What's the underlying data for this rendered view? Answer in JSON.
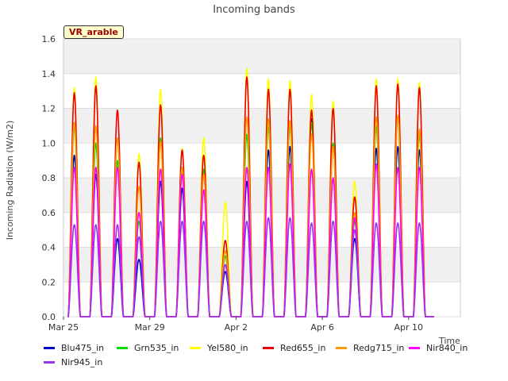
{
  "chart_data": {
    "type": "line",
    "title": "Incoming bands",
    "ylabel": "Incoming Radiation (W/m2)",
    "xlabel": "Time",
    "site_label": "VR_arable",
    "ylim": [
      0,
      1.6
    ],
    "yticks": [
      "0.0",
      "0.2",
      "0.4",
      "0.6",
      "0.8",
      "1.0",
      "1.2",
      "1.4",
      "1.6"
    ],
    "xlim": [
      "2024-03-25",
      "2024-04-12"
    ],
    "xticks": [
      {
        "date": "2024-03-25",
        "label": "Mar 25"
      },
      {
        "date": "2024-03-29",
        "label": "Mar 29"
      },
      {
        "date": "2024-04-02",
        "label": "Apr 2"
      },
      {
        "date": "2024-04-06",
        "label": "Apr 6"
      },
      {
        "date": "2024-04-10",
        "label": "Apr 10"
      }
    ],
    "days": [
      "2024-03-25",
      "2024-03-26",
      "2024-03-27",
      "2024-03-28",
      "2024-03-29",
      "2024-03-30",
      "2024-03-31",
      "2024-04-01",
      "2024-04-02",
      "2024-04-03",
      "2024-04-04",
      "2024-04-05",
      "2024-04-06",
      "2024-04-07",
      "2024-04-08",
      "2024-04-09",
      "2024-04-10",
      "2024-04-11"
    ],
    "grid": true,
    "legend_position": "bottom",
    "series": [
      {
        "name": "Blu475_in",
        "color": "#0000cc",
        "daily_peak": [
          0.93,
          0.82,
          0.45,
          0.33,
          0.78,
          0.74,
          0.82,
          0.26,
          0.78,
          0.96,
          0.98,
          1.14,
          1.0,
          0.45,
          0.97,
          0.98,
          0.96,
          0.0
        ]
      },
      {
        "name": "Grn535_in",
        "color": "#00dd00",
        "daily_peak": [
          1.1,
          1.0,
          0.9,
          0.55,
          1.03,
          0.85,
          0.85,
          0.35,
          1.05,
          1.1,
          1.1,
          1.12,
          1.0,
          0.55,
          1.1,
          1.15,
          1.05,
          0.0
        ]
      },
      {
        "name": "Yel580_in",
        "color": "#ffff00",
        "daily_peak": [
          1.32,
          1.38,
          1.03,
          0.94,
          1.31,
          0.97,
          1.03,
          0.66,
          1.43,
          1.37,
          1.36,
          1.28,
          1.24,
          0.78,
          1.37,
          1.37,
          1.35,
          0.0
        ]
      },
      {
        "name": "Red655_in",
        "color": "#ee0000",
        "daily_peak": [
          1.29,
          1.33,
          1.19,
          0.89,
          1.22,
          0.96,
          0.93,
          0.44,
          1.38,
          1.31,
          1.31,
          1.19,
          1.2,
          0.69,
          1.33,
          1.34,
          1.32,
          0.0
        ]
      },
      {
        "name": "Redg715_in",
        "color": "#ff9900",
        "daily_peak": [
          1.12,
          1.1,
          1.03,
          0.75,
          1.01,
          0.86,
          0.82,
          0.38,
          1.15,
          1.14,
          1.13,
          1.05,
          0.98,
          0.6,
          1.15,
          1.16,
          1.08,
          0.0
        ]
      },
      {
        "name": "Nir840_in",
        "color": "#ff00ff",
        "daily_peak": [
          0.86,
          0.86,
          0.86,
          0.6,
          0.85,
          0.82,
          0.73,
          0.3,
          0.86,
          0.86,
          0.88,
          0.85,
          0.8,
          0.57,
          0.88,
          0.86,
          0.86,
          0.0
        ]
      },
      {
        "name": "Nir945_in",
        "color": "#9933ee",
        "daily_peak": [
          0.53,
          0.53,
          0.53,
          0.46,
          0.55,
          0.55,
          0.55,
          0.3,
          0.55,
          0.57,
          0.57,
          0.54,
          0.55,
          0.5,
          0.54,
          0.54,
          0.54,
          0.0
        ]
      }
    ]
  }
}
